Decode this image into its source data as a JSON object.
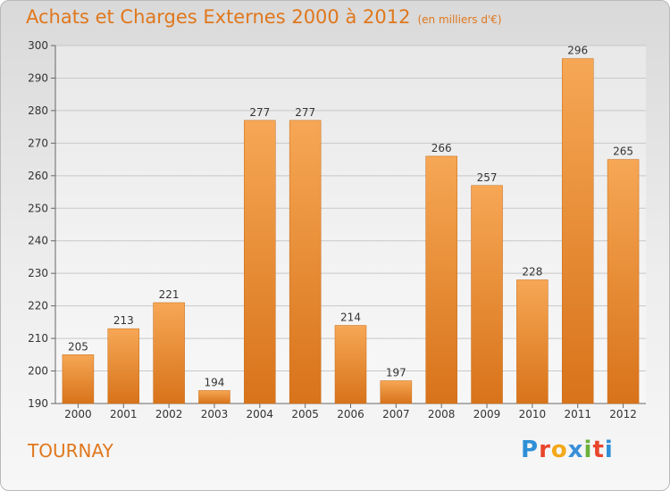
{
  "header": {
    "title": "Achats et Charges Externes 2000 à 2012",
    "subtitle": "(en milliers d'€)"
  },
  "footer": {
    "city": "TOURNAY",
    "logo": "Proxiti"
  },
  "colors": {
    "bar_light": "#f6a755",
    "bar_dark": "#d8731a",
    "title": "#e0771c",
    "grid": "#c8c8c8"
  },
  "chart_data": {
    "type": "bar",
    "title": "Achats et Charges Externes 2000 à 2012",
    "subtitle": "(en milliers d'€)",
    "categories": [
      "2000",
      "2001",
      "2002",
      "2003",
      "2004",
      "2005",
      "2006",
      "2007",
      "2008",
      "2009",
      "2010",
      "2011",
      "2012"
    ],
    "values": [
      205,
      213,
      221,
      194,
      277,
      277,
      214,
      197,
      266,
      257,
      228,
      296,
      265
    ],
    "ylim": [
      190,
      300
    ],
    "yticks": [
      190,
      200,
      210,
      220,
      230,
      240,
      250,
      260,
      270,
      280,
      290,
      300
    ],
    "grid": true,
    "legend": "none"
  }
}
